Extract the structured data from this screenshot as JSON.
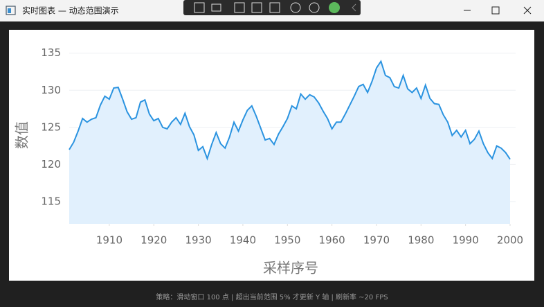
{
  "window": {
    "title": "实时图表 — 动态范围演示",
    "status": "策略：滑动窗口 100 点 | 超出当前范围 5% 才更新 Y 轴 | 刷新率 ~20 FPS"
  },
  "chart_data": {
    "type": "area",
    "x_label": "采样序号",
    "y_label": "数值",
    "color": "#2a93e0",
    "fill": "#e1f0fd",
    "grid": true,
    "xlim": [
      1901,
      2000
    ],
    "ylim": [
      112,
      136
    ],
    "xticks": [
      1910,
      1920,
      1930,
      1940,
      1950,
      1960,
      1970,
      1980,
      1990,
      2000
    ],
    "yticks": [
      115,
      120,
      125,
      130,
      135
    ],
    "x": [
      1901,
      1902,
      1903,
      1904,
      1905,
      1906,
      1907,
      1908,
      1909,
      1910,
      1911,
      1912,
      1913,
      1914,
      1915,
      1916,
      1917,
      1918,
      1919,
      1920,
      1921,
      1922,
      1923,
      1924,
      1925,
      1926,
      1927,
      1928,
      1929,
      1930,
      1931,
      1932,
      1933,
      1934,
      1935,
      1936,
      1937,
      1938,
      1939,
      1940,
      1941,
      1942,
      1943,
      1944,
      1945,
      1946,
      1947,
      1948,
      1949,
      1950,
      1951,
      1952,
      1953,
      1954,
      1955,
      1956,
      1957,
      1958,
      1959,
      1960,
      1961,
      1962,
      1963,
      1964,
      1965,
      1966,
      1967,
      1968,
      1969,
      1970,
      1971,
      1972,
      1973,
      1974,
      1975,
      1976,
      1977,
      1978,
      1979,
      1980,
      1981,
      1982,
      1983,
      1984,
      1985,
      1986,
      1987,
      1988,
      1989,
      1990,
      1991,
      1992,
      1993,
      1994,
      1995,
      1996,
      1997,
      1998,
      1999,
      2000
    ],
    "values": [
      122.0,
      123.0,
      124.5,
      126.2,
      125.7,
      126.1,
      126.3,
      128.0,
      129.2,
      128.8,
      130.3,
      130.4,
      128.8,
      127.1,
      126.1,
      126.3,
      128.4,
      128.7,
      126.8,
      125.9,
      126.2,
      125.0,
      124.8,
      125.7,
      126.3,
      125.4,
      126.9,
      125.1,
      124.0,
      121.9,
      122.4,
      120.8,
      122.7,
      124.3,
      122.8,
      122.2,
      123.7,
      125.7,
      124.5,
      126.0,
      127.3,
      127.9,
      126.5,
      124.9,
      123.3,
      123.5,
      122.7,
      124.1,
      125.1,
      126.2,
      127.9,
      127.5,
      129.5,
      128.8,
      129.4,
      129.1,
      128.3,
      127.2,
      126.2,
      124.8,
      125.7,
      125.7,
      126.8,
      128.0,
      129.2,
      130.5,
      130.8,
      129.7,
      131.2,
      133.0,
      133.9,
      132.0,
      131.7,
      130.5,
      130.3,
      132.0,
      130.2,
      129.7,
      130.3,
      128.9,
      130.7,
      128.9,
      128.2,
      128.1,
      126.7,
      125.7,
      123.9,
      124.6,
      123.7,
      124.6,
      122.8,
      123.4,
      124.5,
      122.8,
      121.6,
      120.8,
      122.5,
      122.2,
      121.6,
      120.7
    ]
  }
}
